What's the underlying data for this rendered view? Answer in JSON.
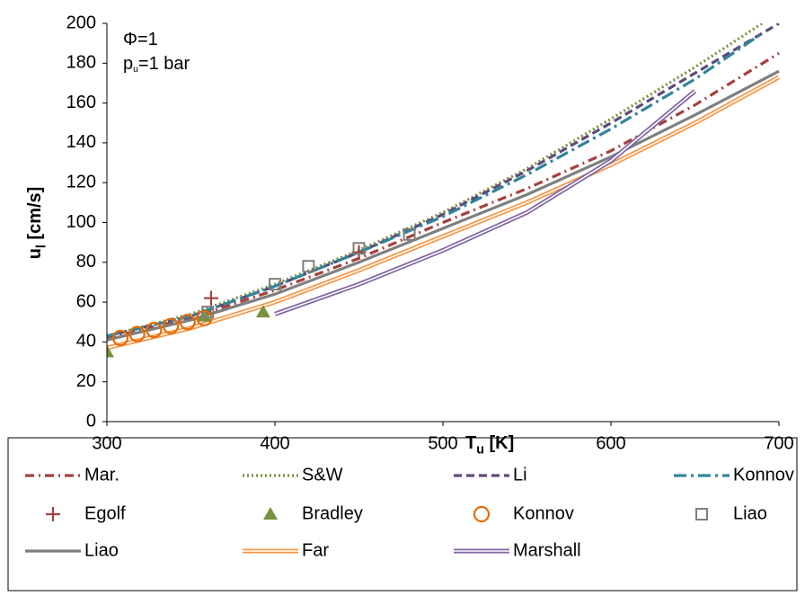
{
  "chart_data": {
    "type": "line",
    "annotations": [
      {
        "text": "Φ=1"
      },
      {
        "text": "p",
        "sub": "u",
        "rest": "=1 bar"
      }
    ],
    "xlabel": {
      "text": "T",
      "sub": "u",
      "rest": " [K]"
    },
    "ylabel": {
      "text": "u",
      "sub": "l",
      "rest": " [cm/s]"
    },
    "xlim": [
      300,
      700
    ],
    "xticks": [
      300,
      400,
      500,
      600,
      700
    ],
    "ylim": [
      0,
      200
    ],
    "yticks": [
      0,
      20,
      40,
      60,
      80,
      100,
      120,
      140,
      160,
      180,
      200
    ],
    "grid": false,
    "series": [
      {
        "name": "Mar.",
        "color": "#a5403c",
        "style": "dashdot",
        "x": [
          300,
          350,
          400,
          450,
          500,
          550,
          600,
          650,
          700
        ],
        "values": [
          42,
          52,
          66,
          82,
          100,
          117,
          136,
          159,
          185
        ]
      },
      {
        "name": "S&W",
        "color": "#77933c",
        "style": "dotted",
        "x": [
          300,
          350,
          400,
          450,
          500,
          550,
          600,
          650,
          690
        ],
        "values": [
          43,
          54,
          69,
          86,
          105,
          127,
          152,
          178,
          200
        ]
      },
      {
        "name": "Li",
        "color": "#604a7b",
        "style": "dashed",
        "x": [
          300,
          350,
          400,
          450,
          500,
          550,
          600,
          650,
          700
        ],
        "values": [
          43,
          53,
          68,
          85,
          104,
          126,
          150,
          175,
          200
        ]
      },
      {
        "name": "Konnov",
        "color": "#31849b",
        "style": "longdashdot",
        "x": [
          300,
          350,
          400,
          450,
          500,
          550,
          600,
          650,
          690
        ],
        "values": [
          43,
          53,
          68,
          85,
          103,
          124,
          147,
          172,
          195
        ]
      },
      {
        "name": "Egolf",
        "color": "#a5403c",
        "marker": "plus",
        "x": [
          362,
          450
        ],
        "values": [
          62,
          85
        ]
      },
      {
        "name": "Bradley",
        "color": "#77933c",
        "marker": "triangle",
        "x": [
          300,
          358,
          393
        ],
        "values": [
          35,
          53,
          55
        ]
      },
      {
        "name": "Konnov",
        "color": "#e46c0a",
        "marker": "circle",
        "x": [
          308,
          318,
          328,
          338,
          348,
          358
        ],
        "values": [
          42,
          44,
          46,
          48,
          50,
          52
        ]
      },
      {
        "name": "Liao",
        "color": "#7f7f7f",
        "marker": "square",
        "x": [
          360,
          400,
          420,
          450,
          480
        ],
        "values": [
          55,
          69,
          78,
          87,
          94
        ]
      },
      {
        "name": "Liao",
        "color": "#7f7f7f",
        "style": "solid",
        "x": [
          300,
          350,
          400,
          450,
          500,
          550,
          600,
          650,
          700
        ],
        "values": [
          41,
          51,
          64,
          80,
          97,
          114,
          133,
          154,
          176
        ]
      },
      {
        "name": "Far",
        "color": "#f79646",
        "style": "double",
        "x": [
          300,
          350,
          400,
          450,
          500,
          550,
          600,
          650,
          700
        ],
        "values": [
          37,
          47,
          60,
          76,
          93,
          110,
          129,
          150,
          173
        ]
      },
      {
        "name": "Marshall",
        "color": "#8064a2",
        "style": "double",
        "x": [
          400,
          450,
          500,
          550,
          600,
          650
        ],
        "values": [
          54,
          69,
          86,
          105,
          131,
          166
        ]
      }
    ]
  }
}
